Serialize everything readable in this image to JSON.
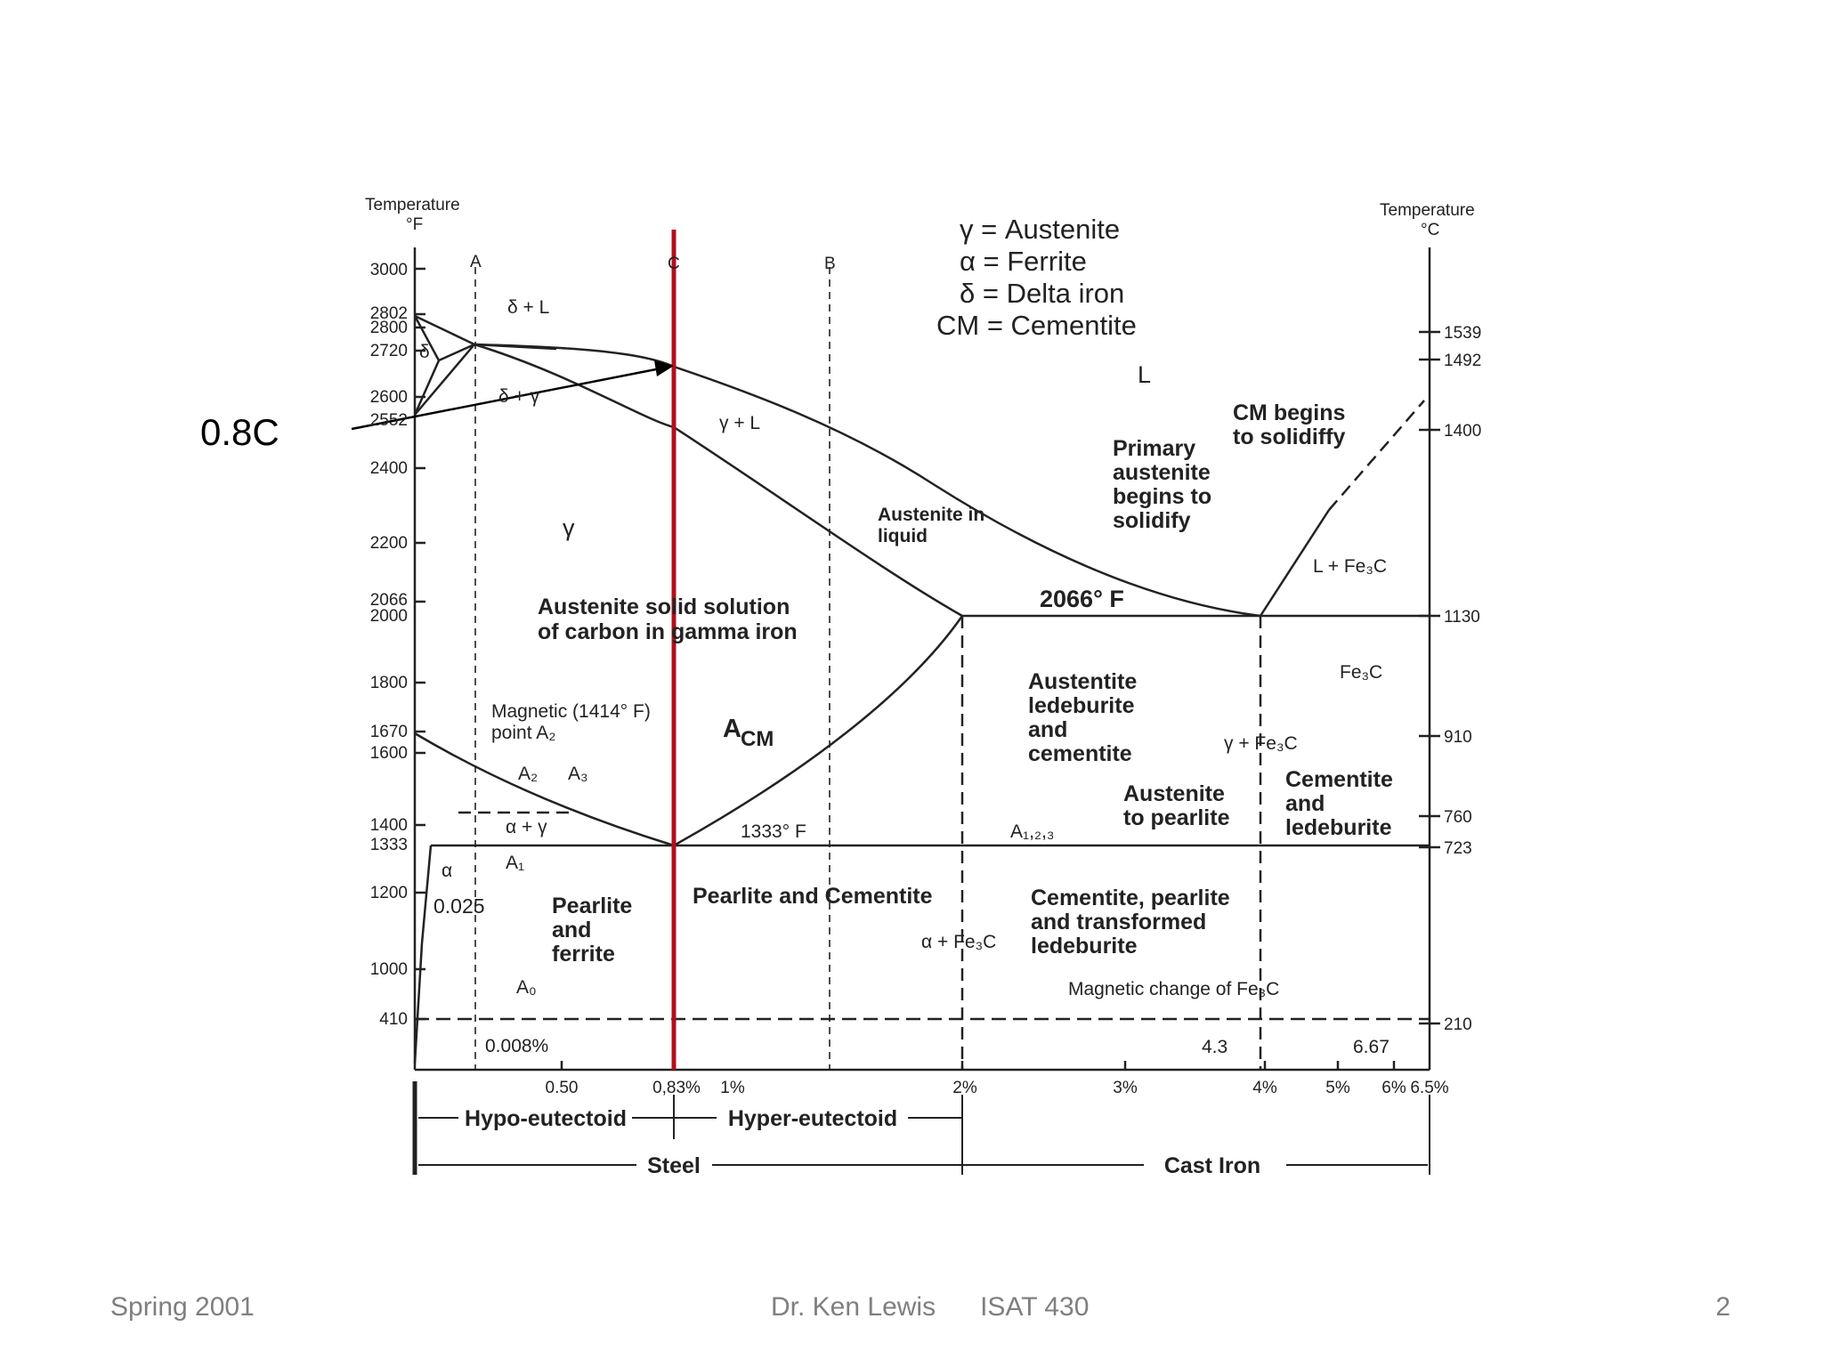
{
  "callout": "0.8C",
  "footer": {
    "left": "Spring 2001",
    "center": "Dr. Ken Lewis      ISAT 430",
    "right": "2"
  },
  "diagram": {
    "left_axis_title": [
      "Temperature",
      "°F"
    ],
    "right_axis_title": [
      "Temperature",
      "°C"
    ],
    "left_ticks": [
      "3000",
      "2802",
      "2800",
      "2720",
      "2600",
      "2552",
      "2400",
      "2200",
      "2066",
      "2000",
      "1800",
      "1670",
      "1600",
      "1400",
      "1333",
      "1200",
      "1000",
      "410"
    ],
    "right_ticks": [
      "1539",
      "1492",
      "1400",
      "1130",
      "910",
      "760",
      "723",
      "210"
    ],
    "bottom_ticks": [
      "0.50",
      "0,83%",
      "1%",
      "2%",
      "3%",
      "4%",
      "5%",
      "6%",
      "6.5%"
    ],
    "legend": [
      "γ = Austenite",
      "α = Ferrite",
      "δ = Delta  iron",
      "CM = Cementite"
    ],
    "composition_lines": {
      "A": "A",
      "B": "B",
      "C": "C"
    },
    "regions": {
      "delta_liquid": "δ + L",
      "delta": "δ",
      "delta_gamma": "δ + γ",
      "gamma_liquid": "γ + L",
      "liquid": "L",
      "gamma": "γ",
      "austenite_solid_solution": [
        "Austenite solid solution",
        "of carbon in gamma iron"
      ],
      "austenite_in_liquid": [
        "Austenite in",
        "liquid"
      ],
      "primary_austenite": [
        "Primary",
        "austenite",
        "begins to",
        "solidify"
      ],
      "cm_begins": [
        "CM begins",
        "to solidiffy"
      ],
      "l_fe3c": "L + Fe₃C",
      "eutectic_temp": "2066° F",
      "austenite_ledeburite": [
        "Austentite",
        "ledeburite",
        "and",
        "cementite"
      ],
      "fe3c": "Fe₃C",
      "gamma_fe3c": "γ + Fe₃C",
      "cementite_ledeburite": [
        "Cementite",
        "and",
        "ledeburite"
      ],
      "austenite_to_pearlite": [
        "Austenite",
        "to pearlite"
      ],
      "acm": "A",
      "acm_sub": "CM",
      "a2": "A₂",
      "a3": "A₃",
      "alpha_gamma": "α + γ",
      "eutectoid_temp": "1333° F",
      "a123": "A₁,₂,₃",
      "a1": "A₁",
      "alpha": "α",
      "p0025": "0.025",
      "pearlite_ferrite": [
        "Pearlite",
        "and",
        "ferrite"
      ],
      "pearlite_cementite": "Pearlite and Cementite",
      "alpha_fe3c": "α + Fe₃C",
      "cementite_pearlite": [
        "Cementite, pearlite",
        "and transformed",
        "ledeburite"
      ],
      "magnetic_point": [
        "Magnetic (1414° F)",
        "point A₂"
      ],
      "a0": "A₀",
      "p0008": "0.008%",
      "magnetic_change": "Magnetic  change  of Fe₃C",
      "p43": "4.3",
      "p667": "6.67"
    },
    "bottom_labels": {
      "hypo": "Hypo-eutectoid",
      "hyper": "Hyper-eutectoid",
      "steel": "Steel",
      "cast_iron": "Cast Iron"
    },
    "highlight_color": "#b0101d"
  }
}
